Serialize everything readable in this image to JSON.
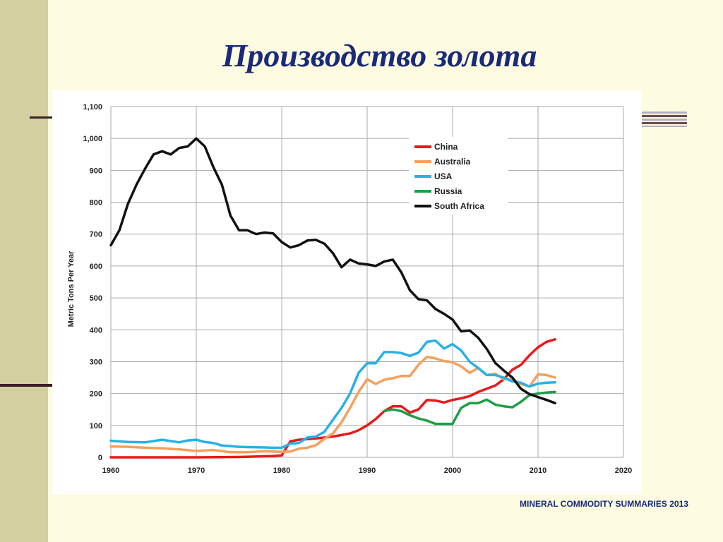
{
  "slide": {
    "title": "Производство золота",
    "source": "MINERAL COMMODITY SUMMARIES 2013"
  },
  "colors": {
    "title": "#1a2a7a",
    "sidebar": "#d3cfa1",
    "background": "#fdfbe0"
  },
  "chart_data": {
    "type": "line",
    "title": "",
    "xlabel": "",
    "ylabel": "Metric Tons Per Year",
    "xlim": [
      1960,
      2020
    ],
    "ylim": [
      0,
      1100
    ],
    "x_ticks": [
      1960,
      1970,
      1980,
      1990,
      2000,
      2010,
      2020
    ],
    "y_ticks": [
      0,
      100,
      200,
      300,
      400,
      500,
      600,
      700,
      800,
      900,
      1000,
      1100
    ],
    "y_tick_labels": [
      "0",
      "100",
      "200",
      "300",
      "400",
      "500",
      "600",
      "700",
      "800",
      "900",
      "1,000",
      "1,100"
    ],
    "grid": true,
    "legend_position": "top-right",
    "series": [
      {
        "name": "China",
        "color": "#e8191b",
        "points": [
          [
            1960,
            0
          ],
          [
            1965,
            0
          ],
          [
            1970,
            0
          ],
          [
            1975,
            1
          ],
          [
            1979,
            4
          ],
          [
            1980,
            6
          ],
          [
            1981,
            50
          ],
          [
            1982,
            55
          ],
          [
            1983,
            57
          ],
          [
            1984,
            59
          ],
          [
            1985,
            62
          ],
          [
            1986,
            65
          ],
          [
            1987,
            70
          ],
          [
            1988,
            75
          ],
          [
            1989,
            85
          ],
          [
            1990,
            100
          ],
          [
            1991,
            120
          ],
          [
            1992,
            145
          ],
          [
            1993,
            160
          ],
          [
            1994,
            160
          ],
          [
            1995,
            140
          ],
          [
            1996,
            150
          ],
          [
            1997,
            180
          ],
          [
            1998,
            178
          ],
          [
            1999,
            172
          ],
          [
            2000,
            180
          ],
          [
            2001,
            185
          ],
          [
            2002,
            192
          ],
          [
            2003,
            205
          ],
          [
            2004,
            215
          ],
          [
            2005,
            225
          ],
          [
            2006,
            245
          ],
          [
            2007,
            275
          ],
          [
            2008,
            290
          ],
          [
            2009,
            320
          ],
          [
            2010,
            345
          ],
          [
            2011,
            362
          ],
          [
            2012,
            370
          ]
        ]
      },
      {
        "name": "Australia",
        "color": "#f4a05c",
        "points": [
          [
            1960,
            34
          ],
          [
            1962,
            33
          ],
          [
            1964,
            30
          ],
          [
            1966,
            28
          ],
          [
            1968,
            25
          ],
          [
            1970,
            20
          ],
          [
            1972,
            23
          ],
          [
            1974,
            16
          ],
          [
            1976,
            16
          ],
          [
            1978,
            19
          ],
          [
            1980,
            17
          ],
          [
            1981,
            18
          ],
          [
            1982,
            27
          ],
          [
            1983,
            30
          ],
          [
            1984,
            38
          ],
          [
            1985,
            58
          ],
          [
            1986,
            75
          ],
          [
            1987,
            110
          ],
          [
            1988,
            155
          ],
          [
            1989,
            205
          ],
          [
            1990,
            245
          ],
          [
            1991,
            230
          ],
          [
            1992,
            243
          ],
          [
            1993,
            248
          ],
          [
            1994,
            255
          ],
          [
            1995,
            255
          ],
          [
            1996,
            290
          ],
          [
            1997,
            315
          ],
          [
            1998,
            310
          ],
          [
            1999,
            302
          ],
          [
            2000,
            298
          ],
          [
            2001,
            285
          ],
          [
            2002,
            265
          ],
          [
            2003,
            280
          ],
          [
            2004,
            258
          ],
          [
            2005,
            262
          ],
          [
            2006,
            245
          ],
          [
            2007,
            245
          ],
          [
            2008,
            230
          ],
          [
            2009,
            222
          ],
          [
            2010,
            260
          ],
          [
            2011,
            258
          ],
          [
            2012,
            250
          ]
        ]
      },
      {
        "name": "USA",
        "color": "#2ab0e5",
        "points": [
          [
            1960,
            52
          ],
          [
            1962,
            48
          ],
          [
            1964,
            47
          ],
          [
            1966,
            55
          ],
          [
            1968,
            47
          ],
          [
            1969,
            53
          ],
          [
            1970,
            55
          ],
          [
            1971,
            48
          ],
          [
            1972,
            45
          ],
          [
            1973,
            37
          ],
          [
            1975,
            33
          ],
          [
            1976,
            32
          ],
          [
            1978,
            31
          ],
          [
            1979,
            30
          ],
          [
            1980,
            30
          ],
          [
            1981,
            43
          ],
          [
            1982,
            45
          ],
          [
            1983,
            62
          ],
          [
            1984,
            65
          ],
          [
            1985,
            80
          ],
          [
            1986,
            118
          ],
          [
            1987,
            155
          ],
          [
            1988,
            200
          ],
          [
            1989,
            265
          ],
          [
            1990,
            295
          ],
          [
            1991,
            295
          ],
          [
            1992,
            330
          ],
          [
            1993,
            330
          ],
          [
            1994,
            327
          ],
          [
            1995,
            318
          ],
          [
            1996,
            328
          ],
          [
            1997,
            362
          ],
          [
            1998,
            366
          ],
          [
            1999,
            341
          ],
          [
            2000,
            355
          ],
          [
            2001,
            335
          ],
          [
            2002,
            300
          ],
          [
            2003,
            280
          ],
          [
            2004,
            258
          ],
          [
            2005,
            258
          ],
          [
            2006,
            250
          ],
          [
            2007,
            238
          ],
          [
            2008,
            234
          ],
          [
            2009,
            222
          ],
          [
            2010,
            231
          ],
          [
            2011,
            234
          ],
          [
            2012,
            235
          ]
        ]
      },
      {
        "name": "Russia",
        "color": "#1f9e47",
        "points": [
          [
            1992,
            145
          ],
          [
            1993,
            150
          ],
          [
            1994,
            145
          ],
          [
            1995,
            132
          ],
          [
            1996,
            122
          ],
          [
            1997,
            115
          ],
          [
            1998,
            105
          ],
          [
            1999,
            105
          ],
          [
            2000,
            105
          ],
          [
            2001,
            155
          ],
          [
            2002,
            170
          ],
          [
            2003,
            170
          ],
          [
            2004,
            181
          ],
          [
            2005,
            165
          ],
          [
            2006,
            160
          ],
          [
            2007,
            157
          ],
          [
            2008,
            174
          ],
          [
            2009,
            195
          ],
          [
            2010,
            200
          ],
          [
            2011,
            203
          ],
          [
            2012,
            205
          ]
        ]
      },
      {
        "name": "South Africa",
        "color": "#111111",
        "points": [
          [
            1960,
            665
          ],
          [
            1961,
            712
          ],
          [
            1962,
            795
          ],
          [
            1963,
            855
          ],
          [
            1964,
            905
          ],
          [
            1965,
            950
          ],
          [
            1966,
            960
          ],
          [
            1967,
            950
          ],
          [
            1968,
            970
          ],
          [
            1969,
            975
          ],
          [
            1970,
            1000
          ],
          [
            1971,
            975
          ],
          [
            1972,
            910
          ],
          [
            1973,
            855
          ],
          [
            1974,
            758
          ],
          [
            1975,
            712
          ],
          [
            1976,
            712
          ],
          [
            1977,
            700
          ],
          [
            1978,
            705
          ],
          [
            1979,
            702
          ],
          [
            1980,
            675
          ],
          [
            1981,
            658
          ],
          [
            1982,
            665
          ],
          [
            1983,
            680
          ],
          [
            1984,
            682
          ],
          [
            1985,
            670
          ],
          [
            1986,
            640
          ],
          [
            1987,
            596
          ],
          [
            1988,
            620
          ],
          [
            1989,
            608
          ],
          [
            1990,
            605
          ],
          [
            1991,
            600
          ],
          [
            1992,
            614
          ],
          [
            1993,
            620
          ],
          [
            1994,
            580
          ],
          [
            1995,
            524
          ],
          [
            1996,
            496
          ],
          [
            1997,
            492
          ],
          [
            1998,
            465
          ],
          [
            1999,
            450
          ],
          [
            2000,
            432
          ],
          [
            2001,
            395
          ],
          [
            2002,
            398
          ],
          [
            2003,
            375
          ],
          [
            2004,
            340
          ],
          [
            2005,
            296
          ],
          [
            2006,
            272
          ],
          [
            2007,
            250
          ],
          [
            2008,
            215
          ],
          [
            2009,
            198
          ],
          [
            2010,
            189
          ],
          [
            2011,
            180
          ],
          [
            2012,
            170
          ]
        ]
      }
    ]
  }
}
